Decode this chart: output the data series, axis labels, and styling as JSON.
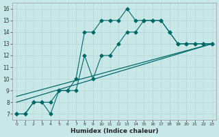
{
  "xlabel": "Humidex (Indice chaleur)",
  "bg_color": "#c8e8e8",
  "grid_color": "#b8d8d8",
  "line_color": "#006868",
  "xlim": [
    -0.5,
    23.5
  ],
  "ylim": [
    6.5,
    16.5
  ],
  "xticks": [
    0,
    1,
    2,
    3,
    4,
    5,
    6,
    7,
    8,
    9,
    10,
    11,
    12,
    13,
    14,
    15,
    16,
    17,
    18,
    19,
    20,
    21,
    22,
    23
  ],
  "yticks": [
    7,
    8,
    9,
    10,
    11,
    12,
    13,
    14,
    15,
    16
  ],
  "lines": [
    {
      "x": [
        0,
        1,
        2,
        3,
        4,
        5,
        6,
        7,
        8,
        9,
        10,
        11,
        12,
        13,
        14,
        15,
        16,
        17,
        18,
        19,
        20,
        21,
        22,
        23
      ],
      "y": [
        7,
        7,
        8,
        8,
        8,
        9,
        9,
        10,
        14,
        14,
        15,
        15,
        15,
        16,
        15,
        15,
        15,
        15,
        14,
        13,
        13,
        13,
        13,
        13
      ],
      "marker": "D",
      "markersize": 2.5,
      "lw": 0.8
    },
    {
      "x": [
        0,
        1,
        2,
        3,
        4,
        5,
        6,
        7,
        8,
        9,
        10,
        11,
        12,
        13,
        14,
        15,
        16,
        17,
        18,
        19,
        20,
        21,
        22,
        23
      ],
      "y": [
        7,
        7,
        8,
        8,
        7,
        9,
        9,
        9,
        12,
        10,
        12,
        12,
        13,
        14,
        14,
        15,
        15,
        15,
        14,
        13,
        13,
        13,
        13,
        13
      ],
      "marker": "D",
      "markersize": 2.5,
      "lw": 0.8
    },
    {
      "x": [
        0,
        23
      ],
      "y": [
        8,
        13
      ],
      "marker": null,
      "markersize": 0,
      "lw": 0.9
    },
    {
      "x": [
        0,
        23
      ],
      "y": [
        8.5,
        13
      ],
      "marker": null,
      "markersize": 0,
      "lw": 0.9
    }
  ]
}
